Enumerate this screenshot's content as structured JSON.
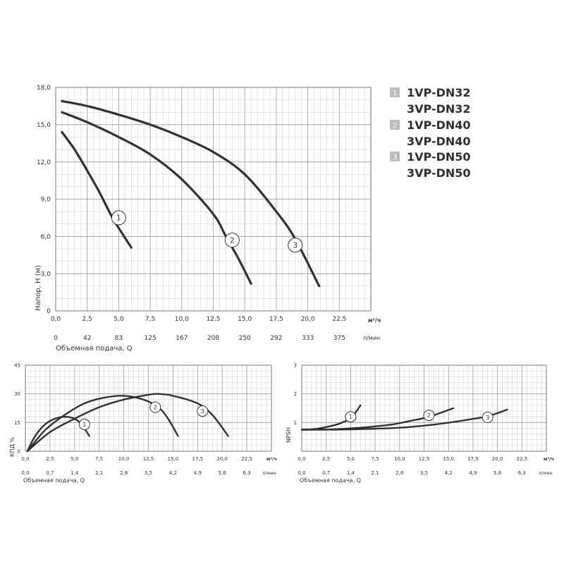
{
  "legend": [
    {
      "badge": "1",
      "lines": [
        "1VP-DN32",
        "3VP-DN32"
      ]
    },
    {
      "badge": "2",
      "lines": [
        "1VP-DN40",
        "3VP-DN40"
      ]
    },
    {
      "badge": "3",
      "lines": [
        "1VP-DN50",
        "3VP-DN50"
      ]
    }
  ],
  "chart_data": [
    {
      "type": "line",
      "ylabel": "Напор, H (м)",
      "xlabel": "Объемная подача, Q",
      "x_unit": "м³/ч",
      "x2_unit": "л/мин",
      "xlim": [
        0,
        25
      ],
      "ylim": [
        0,
        18
      ],
      "x_ticks": [
        "0,0",
        "2,5",
        "5,0",
        "7,5",
        "10,0",
        "12,5",
        "15,0",
        "17,5",
        "20,0",
        "22,5"
      ],
      "x2_ticks": [
        "0",
        "42",
        "83",
        "125",
        "167",
        "208",
        "250",
        "292",
        "333",
        "375"
      ],
      "y_ticks": [
        "0",
        "3,0",
        "6,0",
        "9,0",
        "12,0",
        "15,0",
        "18,0"
      ],
      "grid": true,
      "series": [
        {
          "name": "1",
          "x": [
            0.5,
            1.5,
            2.5,
            3.5,
            4.5,
            5.3,
            6.0
          ],
          "y": [
            14.4,
            13.0,
            11.3,
            9.5,
            7.5,
            6.2,
            5.1
          ]
        },
        {
          "name": "2",
          "x": [
            0.5,
            2.5,
            5.0,
            7.5,
            10.0,
            12.5,
            13.5,
            14.5,
            15.5
          ],
          "y": [
            16.0,
            15.2,
            14.0,
            12.6,
            10.6,
            7.8,
            6.0,
            4.2,
            2.2
          ]
        },
        {
          "name": "3",
          "x": [
            0.5,
            2.5,
            5.0,
            7.5,
            10.0,
            12.5,
            15.0,
            17.5,
            19.0,
            20.9
          ],
          "y": [
            16.9,
            16.5,
            15.8,
            15.0,
            14.0,
            12.8,
            11.0,
            8.0,
            5.8,
            2.0
          ]
        }
      ],
      "labels": [
        {
          "text": "1",
          "x": 5.0,
          "y": 7.5
        },
        {
          "text": "2",
          "x": 14.0,
          "y": 5.7
        },
        {
          "text": "3",
          "x": 19.0,
          "y": 5.3
        }
      ]
    },
    {
      "type": "line",
      "ylabel": "КПД %",
      "xlabel": "Объемная подача, Q",
      "x_unit": "м³/ч",
      "x2_unit": "л/мин",
      "xlim": [
        0,
        25
      ],
      "ylim": [
        0,
        45
      ],
      "x_ticks": [
        "0,0",
        "2,5",
        "5,0",
        "7,5",
        "10,0",
        "12,5",
        "15,0",
        "17,5",
        "20,0",
        "22,5"
      ],
      "x2_ticks": [
        "0,0",
        "0,7",
        "1,4",
        "2,1",
        "2,8",
        "3,5",
        "4,2",
        "4,9",
        "5,6",
        "6,3"
      ],
      "y_ticks": [
        "0",
        "15",
        "30",
        "45"
      ],
      "grid": true,
      "series": [
        {
          "name": "1",
          "x": [
            0.2,
            1.0,
            2.0,
            3.0,
            4.0,
            5.0,
            5.7,
            6.5
          ],
          "y": [
            0,
            8,
            14,
            17,
            18,
            17,
            14,
            8
          ]
        },
        {
          "name": "2",
          "x": [
            0.2,
            2.0,
            4.0,
            6.0,
            8.0,
            10.0,
            12.0,
            13.5,
            14.5,
            15.5
          ],
          "y": [
            0,
            11,
            19,
            25,
            28,
            29,
            27,
            23,
            17,
            8
          ]
        },
        {
          "name": "3",
          "x": [
            0.2,
            2.5,
            5.0,
            7.5,
            10.0,
            12.5,
            13.5,
            15.0,
            17.5,
            19.0,
            20.6
          ],
          "y": [
            0,
            10,
            17,
            23,
            27,
            29.5,
            30,
            29,
            25,
            19,
            8
          ]
        }
      ],
      "labels": [
        {
          "text": "1",
          "x": 6.0,
          "y": 14
        },
        {
          "text": "2",
          "x": 13.2,
          "y": 23
        },
        {
          "text": "3",
          "x": 18.0,
          "y": 21
        }
      ]
    },
    {
      "type": "line",
      "ylabel": "NPSH",
      "xlabel": "Объемная подача, Q",
      "x_unit": "м³/ч",
      "x2_unit": "л/мин",
      "xlim": [
        0,
        25
      ],
      "ylim": [
        0,
        3
      ],
      "x_ticks": [
        "0,0",
        "2,5",
        "5,0",
        "7,5",
        "10,0",
        "12,5",
        "15,0",
        "17,5",
        "20,0",
        "22,5"
      ],
      "x2_ticks": [
        "0,0",
        "0,7",
        "1,4",
        "2,1",
        "2,8",
        "3,5",
        "4,2",
        "4,9",
        "5,6",
        "6,3"
      ],
      "y_ticks": [
        "1",
        "2",
        "3"
      ],
      "grid": true,
      "series": [
        {
          "name": "1",
          "x": [
            0.0,
            1.5,
            3.0,
            4.0,
            5.0,
            5.5,
            6.0
          ],
          "y": [
            0.75,
            0.78,
            0.88,
            0.98,
            1.15,
            1.35,
            1.6
          ]
        },
        {
          "name": "2",
          "x": [
            0.0,
            3.0,
            6.0,
            9.0,
            11.0,
            13.0,
            15.5
          ],
          "y": [
            0.75,
            0.76,
            0.82,
            0.92,
            1.05,
            1.2,
            1.5
          ]
        },
        {
          "name": "3",
          "x": [
            0.0,
            5.0,
            10.0,
            14.0,
            17.0,
            19.0,
            21.0
          ],
          "y": [
            0.75,
            0.76,
            0.82,
            0.95,
            1.1,
            1.22,
            1.45
          ]
        }
      ],
      "labels": [
        {
          "text": "1",
          "x": 5.0,
          "y": 1.2
        },
        {
          "text": "2",
          "x": 13.0,
          "y": 1.25
        },
        {
          "text": "3",
          "x": 19.0,
          "y": 1.18
        }
      ]
    }
  ]
}
